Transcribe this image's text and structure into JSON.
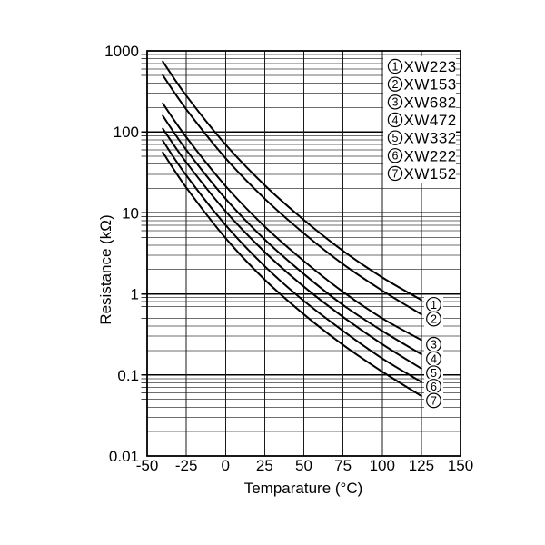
{
  "chart": {
    "title": "",
    "x_axis": {
      "label": "Temparature (°C)",
      "tick_labels": [
        "-50",
        "-25",
        "0",
        "25",
        "50",
        "75",
        "100",
        "125",
        "150"
      ],
      "tick_values": [
        -50,
        -25,
        0,
        25,
        50,
        75,
        100,
        125,
        150
      ],
      "range": [
        -50,
        150
      ]
    },
    "y_axis": {
      "label": "Resistance (kΩ)",
      "tick_labels": [
        "1000",
        "100",
        "10",
        "1",
        "0.1",
        "0.01"
      ],
      "tick_values": [
        1000,
        100,
        10,
        1,
        0.1,
        0.01
      ],
      "scale": "log",
      "range": [
        0.01,
        1000
      ]
    },
    "legend": {
      "position": "top-right-inside",
      "entries": [
        {
          "index": "1",
          "label": "XW223"
        },
        {
          "index": "2",
          "label": "XW153"
        },
        {
          "index": "3",
          "label": "XW682"
        },
        {
          "index": "4",
          "label": "XW472"
        },
        {
          "index": "5",
          "label": "XW332"
        },
        {
          "index": "6",
          "label": "XW222"
        },
        {
          "index": "7",
          "label": "XW152"
        }
      ]
    },
    "colors": {
      "background": "#ffffff",
      "curve": "#000000",
      "major_grid": "#000000",
      "minor_grid": "#6e6e6e",
      "vertical_grid": "#1a1a1a",
      "border": "#000000",
      "text": "#000000"
    }
  },
  "chart_data": {
    "type": "line",
    "x_unit": "°C",
    "y_unit": "kΩ",
    "x": [
      -40,
      -25,
      0,
      25,
      50,
      75,
      100,
      125
    ],
    "series": [
      {
        "index": "1",
        "name": "XW223",
        "values": [
          740,
          280,
          70,
          22,
          8.2,
          3.4,
          1.6,
          0.84
        ]
      },
      {
        "index": "2",
        "name": "XW153",
        "values": [
          500,
          190,
          47.5,
          15,
          5.6,
          2.33,
          1.1,
          0.56
        ]
      },
      {
        "index": "3",
        "name": "XW682",
        "values": [
          225,
          86,
          21.5,
          6.8,
          2.55,
          1.06,
          0.5,
          0.27
        ]
      },
      {
        "index": "4",
        "name": "XW472",
        "values": [
          158,
          60,
          15,
          4.7,
          1.76,
          0.73,
          0.35,
          0.18
        ]
      },
      {
        "index": "5",
        "name": "XW332",
        "values": [
          110,
          42,
          10.5,
          3.3,
          1.23,
          0.52,
          0.24,
          0.12
        ]
      },
      {
        "index": "6",
        "name": "XW222",
        "values": [
          78,
          29,
          7.1,
          2.2,
          0.82,
          0.35,
          0.16,
          0.082
        ]
      },
      {
        "index": "7",
        "name": "XW152",
        "values": [
          56,
          20.5,
          4.9,
          1.5,
          0.56,
          0.235,
          0.11,
          0.055
        ]
      }
    ],
    "title": "",
    "xlabel": "Temparature (°C)",
    "ylabel": "Resistance (kΩ)",
    "xlim": [
      -50,
      150
    ],
    "ylim": [
      0.01,
      1000
    ],
    "y_scale": "log",
    "grid": "log minor gridlines on, vertical every 25°C"
  }
}
